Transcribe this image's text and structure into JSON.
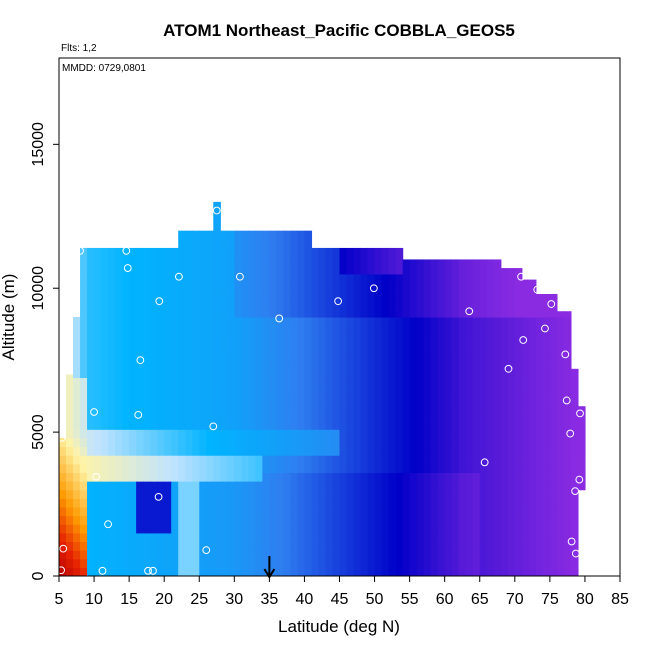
{
  "chart_data": {
    "type": "heatmap",
    "title": "ATOM1 Northeast_Pacific COBBLA_GEOS5",
    "annotations": {
      "flights": "Flts: 1,2",
      "dates": "MMDD: 0729,0801"
    },
    "xlabel": "Latitude (deg N)",
    "ylabel": "Altitude (m)",
    "xlim": [
      5,
      85
    ],
    "ylim": [
      0,
      18000
    ],
    "xticks": [
      "5",
      "10",
      "15",
      "20",
      "25",
      "30",
      "35",
      "40",
      "45",
      "50",
      "55",
      "60",
      "65",
      "70",
      "75",
      "80",
      "85"
    ],
    "yticks": [
      "0",
      "5000",
      "10000",
      "15000"
    ],
    "marker_arrow_latitude": 35,
    "colors": {
      "dark_red": "#b30000",
      "red": "#e62200",
      "orange": "#ff9a00",
      "light_yellow": "#fff4a8",
      "light_blue": "#bfe3ff",
      "cyan": "#00b4ff",
      "blue": "#2f7ff0",
      "navy": "#0000c8",
      "purple": "#8a2be2"
    },
    "observation_points": [
      {
        "lat": 5.3,
        "alt": 200
      },
      {
        "lat": 5.6,
        "alt": 950
      },
      {
        "lat": 5.4,
        "alt": 4800
      },
      {
        "lat": 11.2,
        "alt": 180
      },
      {
        "lat": 12.0,
        "alt": 1800
      },
      {
        "lat": 10.3,
        "alt": 3450
      },
      {
        "lat": 10.0,
        "alt": 5700
      },
      {
        "lat": 17.7,
        "alt": 180
      },
      {
        "lat": 18.4,
        "alt": 180
      },
      {
        "lat": 19.2,
        "alt": 2750
      },
      {
        "lat": 16.3,
        "alt": 5600
      },
      {
        "lat": 26.0,
        "alt": 900
      },
      {
        "lat": 27.0,
        "alt": 5200
      },
      {
        "lat": 16.6,
        "alt": 7500
      },
      {
        "lat": 19.3,
        "alt": 9550
      },
      {
        "lat": 14.8,
        "alt": 10700
      },
      {
        "lat": 14.6,
        "alt": 11300
      },
      {
        "lat": 8.0,
        "alt": 11300
      },
      {
        "lat": 22.1,
        "alt": 10400
      },
      {
        "lat": 30.8,
        "alt": 10400
      },
      {
        "lat": 27.5,
        "alt": 12700
      },
      {
        "lat": 36.4,
        "alt": 8950
      },
      {
        "lat": 44.8,
        "alt": 9550
      },
      {
        "lat": 49.9,
        "alt": 10000
      },
      {
        "lat": 63.5,
        "alt": 9200
      },
      {
        "lat": 67.7,
        "alt": 11350
      },
      {
        "lat": 70.9,
        "alt": 10400
      },
      {
        "lat": 73.2,
        "alt": 9950
      },
      {
        "lat": 76.7,
        "alt": 9700
      },
      {
        "lat": 75.2,
        "alt": 9450
      },
      {
        "lat": 74.3,
        "alt": 8600
      },
      {
        "lat": 71.2,
        "alt": 8200
      },
      {
        "lat": 77.2,
        "alt": 7700
      },
      {
        "lat": 69.1,
        "alt": 7200
      },
      {
        "lat": 77.4,
        "alt": 6100
      },
      {
        "lat": 79.3,
        "alt": 5650
      },
      {
        "lat": 77.9,
        "alt": 4950
      },
      {
        "lat": 65.7,
        "alt": 3950
      },
      {
        "lat": 79.2,
        "alt": 3350
      },
      {
        "lat": 78.6,
        "alt": 2950
      },
      {
        "lat": 78.1,
        "alt": 1200
      },
      {
        "lat": 78.7,
        "alt": 780
      }
    ]
  }
}
